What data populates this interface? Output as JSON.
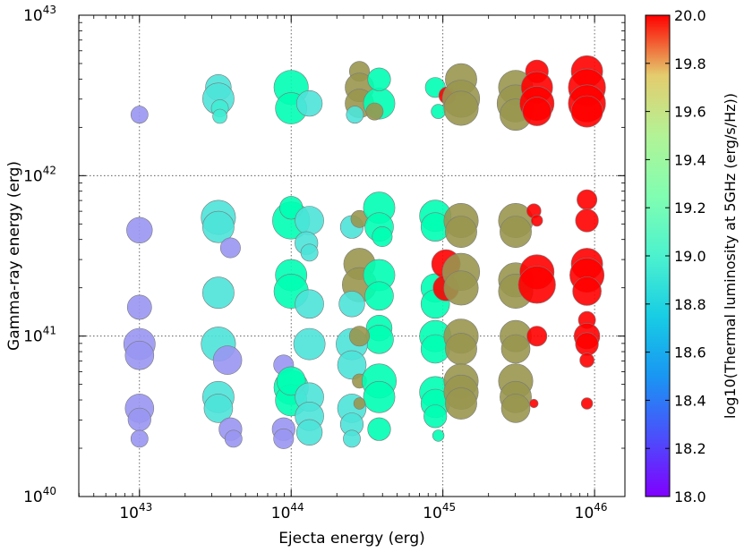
{
  "chart_data": {
    "type": "scatter",
    "xscale": "log",
    "yscale": "log",
    "xlabel": "Ejecta energy (erg)",
    "ylabel": "Gamma-ray energy (erg)",
    "colorbar_label": "log10(Thermal luminosity at 5GHz (erg/s/Hz))",
    "x_log_range": [
      42.6,
      46.2
    ],
    "y_log_range": [
      40,
      43
    ],
    "x_ticks": [
      {
        "base": "10",
        "exp": "43",
        "log": 43
      },
      {
        "base": "10",
        "exp": "44",
        "log": 44
      },
      {
        "base": "10",
        "exp": "45",
        "log": 45
      },
      {
        "base": "10",
        "exp": "46",
        "log": 46
      }
    ],
    "y_ticks": [
      {
        "base": "10",
        "exp": "40",
        "log": 40
      },
      {
        "base": "10",
        "exp": "41",
        "log": 41
      },
      {
        "base": "10",
        "exp": "42",
        "log": 42
      },
      {
        "base": "10",
        "exp": "43",
        "log": 43
      }
    ],
    "colorbar_range": [
      18.0,
      20.0
    ],
    "colorbar_ticks": [
      "18.0",
      "18.2",
      "18.4",
      "18.6",
      "18.8",
      "19.0",
      "19.2",
      "19.4",
      "19.6",
      "19.8",
      "20.0"
    ],
    "grid": true,
    "point_fields": [
      "log10_ejecta_energy",
      "log10_gamma_energy",
      "log10_thermal_luminosity",
      "relative_size"
    ],
    "points": [
      [
        43.0,
        42.38,
        18.4,
        0.6
      ],
      [
        43.0,
        41.66,
        18.4,
        0.9
      ],
      [
        43.0,
        41.18,
        18.4,
        0.85
      ],
      [
        43.0,
        40.95,
        18.4,
        1.1
      ],
      [
        43.0,
        40.88,
        18.4,
        1.0
      ],
      [
        43.0,
        40.55,
        18.4,
        1.0
      ],
      [
        43.0,
        40.48,
        18.4,
        0.8
      ],
      [
        43.0,
        40.36,
        18.4,
        0.6
      ],
      [
        43.52,
        42.55,
        18.7,
        0.9
      ],
      [
        43.52,
        42.48,
        18.7,
        1.1
      ],
      [
        43.53,
        42.42,
        18.75,
        0.6
      ],
      [
        43.53,
        42.37,
        18.75,
        0.5
      ],
      [
        43.52,
        41.74,
        18.7,
        1.2
      ],
      [
        43.52,
        41.68,
        18.7,
        1.1
      ],
      [
        43.6,
        41.55,
        18.4,
        0.7
      ],
      [
        43.52,
        41.27,
        18.7,
        1.1
      ],
      [
        43.52,
        40.95,
        18.7,
        1.2
      ],
      [
        43.52,
        40.62,
        18.7,
        1.1
      ],
      [
        43.52,
        40.55,
        18.7,
        1.0
      ],
      [
        43.58,
        40.85,
        18.4,
        1.0
      ],
      [
        43.6,
        40.42,
        18.4,
        0.8
      ],
      [
        43.62,
        40.36,
        18.4,
        0.6
      ],
      [
        44.0,
        42.55,
        19.0,
        1.2
      ],
      [
        44.0,
        42.42,
        19.0,
        1.1
      ],
      [
        44.12,
        42.45,
        18.7,
        0.9
      ],
      [
        44.0,
        41.72,
        19.0,
        1.3
      ],
      [
        44.0,
        41.8,
        19.0,
        0.8
      ],
      [
        44.12,
        41.72,
        18.7,
        1.0
      ],
      [
        44.1,
        41.58,
        18.7,
        0.8
      ],
      [
        44.12,
        41.52,
        18.7,
        0.6
      ],
      [
        44.0,
        41.38,
        19.0,
        1.1
      ],
      [
        44.0,
        41.28,
        19.0,
        1.2
      ],
      [
        43.95,
        40.82,
        18.4,
        0.7
      ],
      [
        44.0,
        40.68,
        19.0,
        1.2
      ],
      [
        44.0,
        40.6,
        19.0,
        1.1
      ],
      [
        44.0,
        40.72,
        19.0,
        1.0
      ],
      [
        44.12,
        41.2,
        18.7,
        1.0
      ],
      [
        44.12,
        40.95,
        18.7,
        1.1
      ],
      [
        44.12,
        40.62,
        18.7,
        1.0
      ],
      [
        44.12,
        40.5,
        18.7,
        1.0
      ],
      [
        43.95,
        40.42,
        18.4,
        0.8
      ],
      [
        43.95,
        40.36,
        18.4,
        0.7
      ],
      [
        44.12,
        40.4,
        18.7,
        0.9
      ],
      [
        44.45,
        42.65,
        19.6,
        0.7
      ],
      [
        44.45,
        42.55,
        19.6,
        1.0
      ],
      [
        44.45,
        42.45,
        19.6,
        1.0
      ],
      [
        44.42,
        42.38,
        18.7,
        0.6
      ],
      [
        44.58,
        42.45,
        19.0,
        1.1
      ],
      [
        44.58,
        42.6,
        19.0,
        0.8
      ],
      [
        44.55,
        42.4,
        19.6,
        0.6
      ],
      [
        44.4,
        41.68,
        18.7,
        0.8
      ],
      [
        44.45,
        41.73,
        19.6,
        0.6
      ],
      [
        44.58,
        41.8,
        19.0,
        1.1
      ],
      [
        44.58,
        41.68,
        19.0,
        1.0
      ],
      [
        44.6,
        41.62,
        19.0,
        0.7
      ],
      [
        44.45,
        41.45,
        19.6,
        1.1
      ],
      [
        44.45,
        41.32,
        19.6,
        1.2
      ],
      [
        44.58,
        41.38,
        19.0,
        1.1
      ],
      [
        44.58,
        41.25,
        19.0,
        1.0
      ],
      [
        44.4,
        41.2,
        18.7,
        0.9
      ],
      [
        44.58,
        41.05,
        19.0,
        0.9
      ],
      [
        44.58,
        40.98,
        19.0,
        1.0
      ],
      [
        44.4,
        40.95,
        18.7,
        1.1
      ],
      [
        44.45,
        41.0,
        19.6,
        0.7
      ],
      [
        44.4,
        40.82,
        18.7,
        1.0
      ],
      [
        44.45,
        40.72,
        19.6,
        0.5
      ],
      [
        44.58,
        40.72,
        19.0,
        1.2
      ],
      [
        44.58,
        40.62,
        19.0,
        1.1
      ],
      [
        44.4,
        40.55,
        18.7,
        1.0
      ],
      [
        44.45,
        40.58,
        19.6,
        0.4
      ],
      [
        44.4,
        40.45,
        18.7,
        0.8
      ],
      [
        44.4,
        40.36,
        18.7,
        0.6
      ],
      [
        44.58,
        40.42,
        19.0,
        0.8
      ],
      [
        44.95,
        42.55,
        19.0,
        0.7
      ],
      [
        44.97,
        42.4,
        19.0,
        0.5
      ],
      [
        45.03,
        42.5,
        20.0,
        0.6
      ],
      [
        44.95,
        41.75,
        19.0,
        1.1
      ],
      [
        44.95,
        41.68,
        19.0,
        1.0
      ],
      [
        44.95,
        41.3,
        19.0,
        1.0
      ],
      [
        44.95,
        41.2,
        19.0,
        1.0
      ],
      [
        44.95,
        41.0,
        19.0,
        1.1
      ],
      [
        44.95,
        40.92,
        19.0,
        1.0
      ],
      [
        44.95,
        40.65,
        19.0,
        1.1
      ],
      [
        44.95,
        40.58,
        19.0,
        1.0
      ],
      [
        44.95,
        40.5,
        19.0,
        0.8
      ],
      [
        44.97,
        40.38,
        19.0,
        0.4
      ],
      [
        45.02,
        41.45,
        20.0,
        1.0
      ],
      [
        45.02,
        41.3,
        20.0,
        0.9
      ],
      [
        45.12,
        42.6,
        19.6,
        1.1
      ],
      [
        45.12,
        42.48,
        19.6,
        1.3
      ],
      [
        45.12,
        42.42,
        19.6,
        1.2
      ],
      [
        45.12,
        41.72,
        19.6,
        1.2
      ],
      [
        45.12,
        41.65,
        19.6,
        1.1
      ],
      [
        45.12,
        41.4,
        19.6,
        1.3
      ],
      [
        45.12,
        41.3,
        19.6,
        1.2
      ],
      [
        45.12,
        41.0,
        19.6,
        1.2
      ],
      [
        45.12,
        40.92,
        19.6,
        1.1
      ],
      [
        45.12,
        40.72,
        19.6,
        1.2
      ],
      [
        45.12,
        40.65,
        19.6,
        1.2
      ],
      [
        45.12,
        40.58,
        19.6,
        1.1
      ],
      [
        45.48,
        42.55,
        19.6,
        1.2
      ],
      [
        45.48,
        42.45,
        19.6,
        1.3
      ],
      [
        45.48,
        42.38,
        19.6,
        1.1
      ],
      [
        45.48,
        41.72,
        19.6,
        1.2
      ],
      [
        45.48,
        41.65,
        19.6,
        1.1
      ],
      [
        45.48,
        41.35,
        19.6,
        1.2
      ],
      [
        45.48,
        41.28,
        19.6,
        1.2
      ],
      [
        45.48,
        41.0,
        19.6,
        1.1
      ],
      [
        45.48,
        40.92,
        19.6,
        1.0
      ],
      [
        45.48,
        40.72,
        19.6,
        1.2
      ],
      [
        45.48,
        40.62,
        19.6,
        1.1
      ],
      [
        45.48,
        40.55,
        19.6,
        1.0
      ],
      [
        45.62,
        42.65,
        20.0,
        0.8
      ],
      [
        45.62,
        42.55,
        20.0,
        1.1
      ],
      [
        45.62,
        42.45,
        20.0,
        1.2
      ],
      [
        45.62,
        42.4,
        20.0,
        1.0
      ],
      [
        45.6,
        41.78,
        20.0,
        0.5
      ],
      [
        45.62,
        41.72,
        20.0,
        0.4
      ],
      [
        45.62,
        41.4,
        20.0,
        1.2
      ],
      [
        45.62,
        41.32,
        20.0,
        1.3
      ],
      [
        45.62,
        41.0,
        20.0,
        0.7
      ],
      [
        45.6,
        40.58,
        20.0,
        0.3
      ],
      [
        45.95,
        42.65,
        20.0,
        1.1
      ],
      [
        45.95,
        42.55,
        20.0,
        1.3
      ],
      [
        45.95,
        42.45,
        20.0,
        1.3
      ],
      [
        45.95,
        42.4,
        20.0,
        1.1
      ],
      [
        45.95,
        41.85,
        20.0,
        0.7
      ],
      [
        45.95,
        41.72,
        20.0,
        0.8
      ],
      [
        45.95,
        41.45,
        20.0,
        1.1
      ],
      [
        45.95,
        41.38,
        20.0,
        1.2
      ],
      [
        45.95,
        41.28,
        20.0,
        1.0
      ],
      [
        45.95,
        41.1,
        20.0,
        0.6
      ],
      [
        45.95,
        41.0,
        20.0,
        0.9
      ],
      [
        45.95,
        40.95,
        20.0,
        0.8
      ],
      [
        45.95,
        40.85,
        20.0,
        0.5
      ],
      [
        45.95,
        40.58,
        20.0,
        0.4
      ]
    ]
  }
}
